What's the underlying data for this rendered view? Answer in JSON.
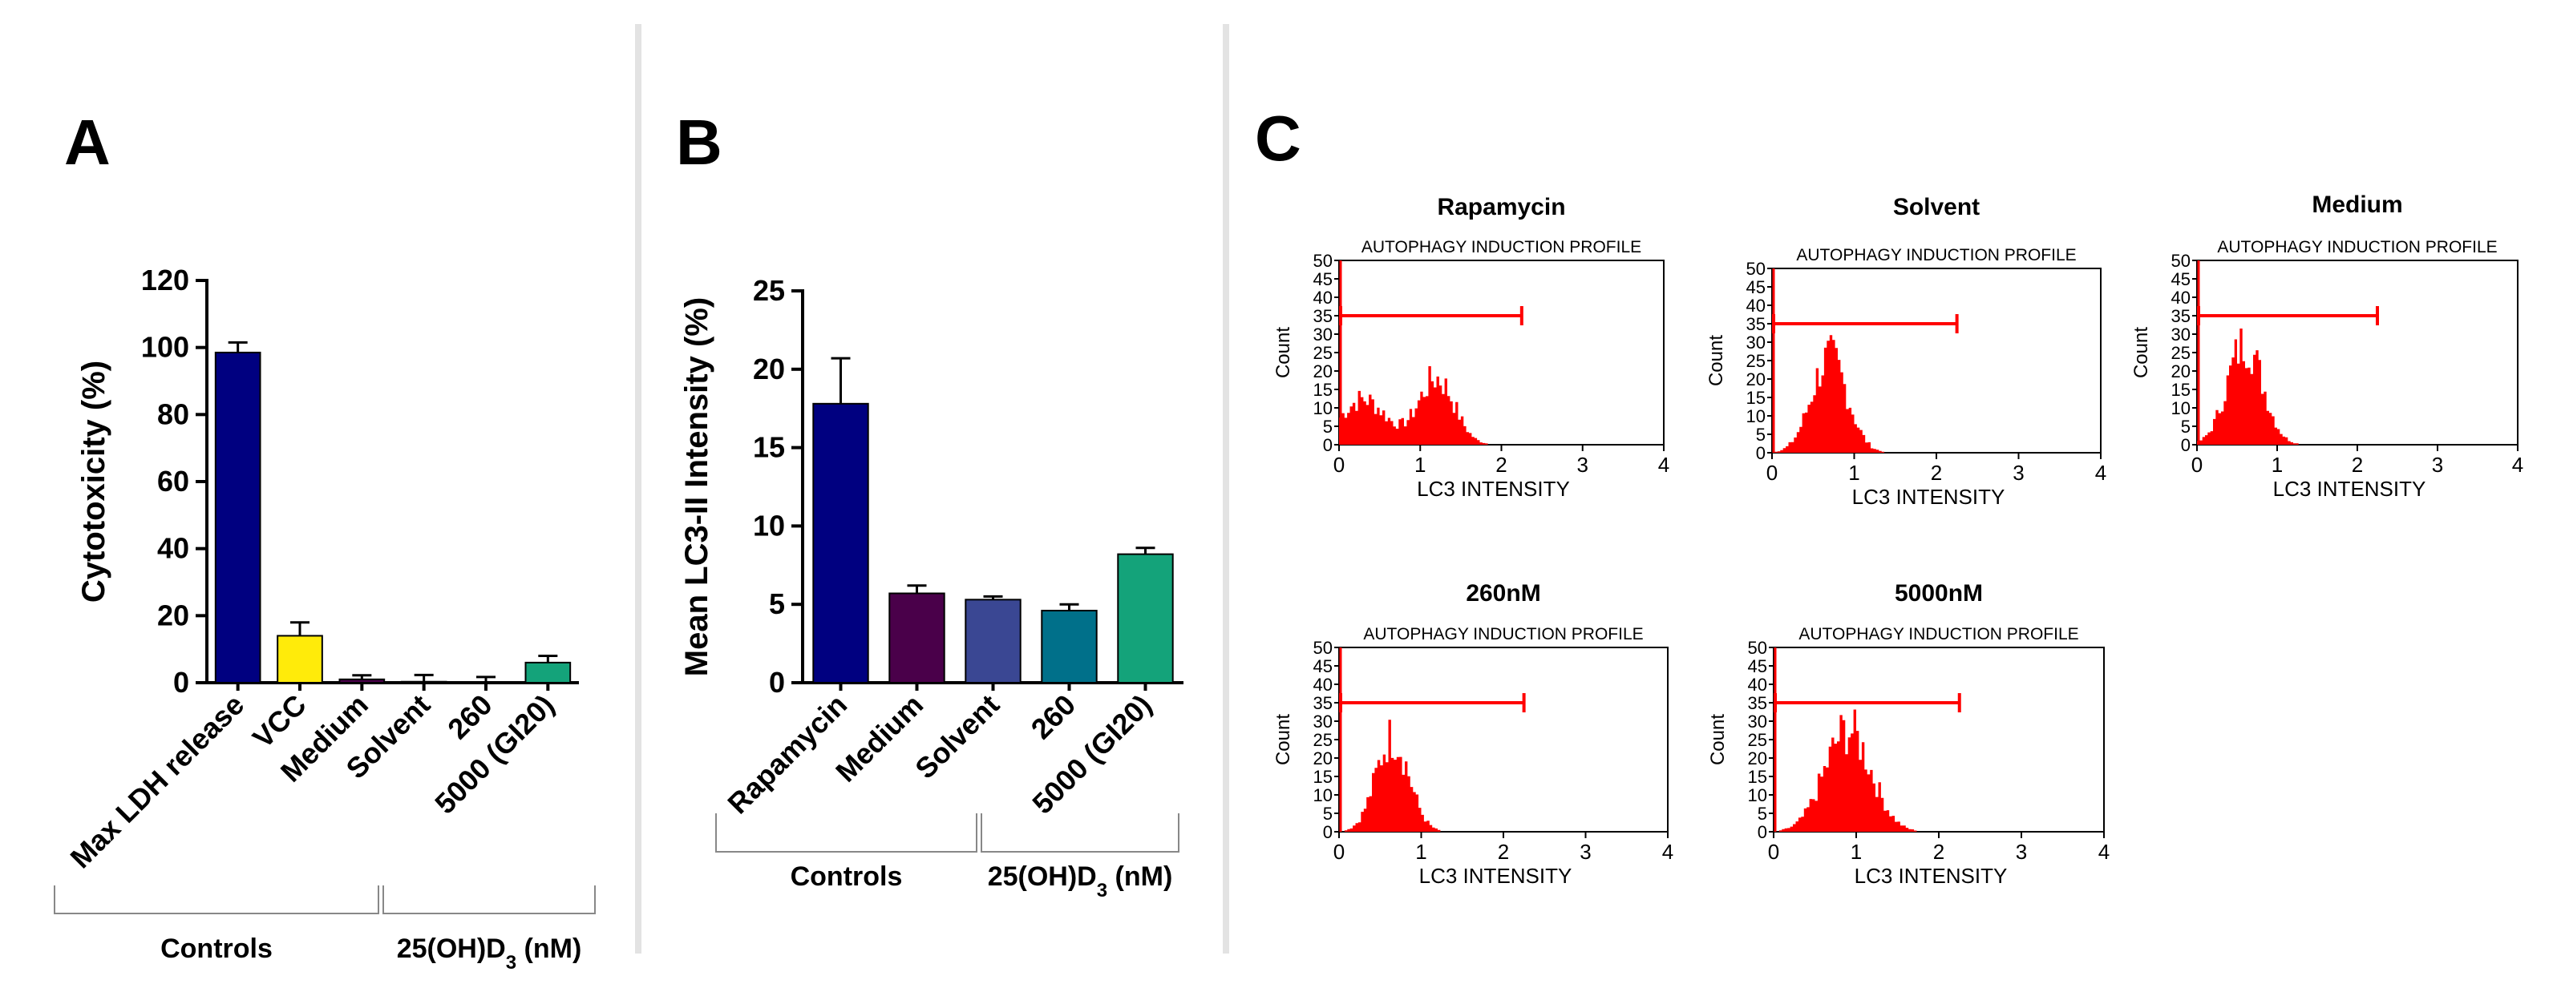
{
  "divider_color": "#e3e3e3",
  "histogram_color": "#ff0000",
  "chart_data": [
    {
      "panel": "A",
      "type": "bar",
      "ylabel": "Cytotoxicity (%)",
      "ylim": [
        0,
        120
      ],
      "yticks": [
        0,
        20,
        40,
        60,
        80,
        100,
        120
      ],
      "categories": [
        "Max LDH release",
        "VCC",
        "Medium",
        "Solvent",
        "260",
        "5000 (GI20)"
      ],
      "values": [
        98.5,
        14,
        1,
        0.3,
        0.2,
        6
      ],
      "errors": [
        3,
        4,
        1.2,
        2,
        1.5,
        2
      ],
      "colors": [
        "#000080",
        "#ffeb0a",
        "#4a004a",
        "#2e3a87",
        "#00708a",
        "#14a37a"
      ],
      "groups": [
        {
          "label": "Controls",
          "sub": "",
          "unit": "",
          "from": 0,
          "to": 3
        },
        {
          "label": "25(OH)D",
          "sub": "3",
          "unit": " (nM)",
          "from": 3,
          "to": 5
        }
      ]
    },
    {
      "panel": "B",
      "type": "bar",
      "ylabel": "Mean LC3-II Intensity (%)",
      "ylim": [
        0,
        25
      ],
      "yticks": [
        0,
        5,
        10,
        15,
        20,
        25
      ],
      "categories": [
        "Rapamycin",
        "Medium",
        "Solvent",
        "260",
        "5000 (GI20)"
      ],
      "values": [
        17.8,
        5.7,
        5.3,
        4.6,
        8.2
      ],
      "errors": [
        2.9,
        0.5,
        0.2,
        0.4,
        0.4
      ],
      "colors": [
        "#000080",
        "#4a004a",
        "#3a4793",
        "#00708a",
        "#14a37a"
      ],
      "groups": [
        {
          "label": "Controls",
          "sub": "",
          "unit": "",
          "from": 0,
          "to": 2
        },
        {
          "label": "25(OH)D",
          "sub": "3",
          "unit": " (nM)",
          "from": 2,
          "to": 4
        }
      ]
    },
    {
      "panel": "C",
      "type": "histogram",
      "profile_title": "AUTOPHAGY INDUCTION PROFILE",
      "xlabel": "LC3 INTENSITY",
      "ylabel": "Count",
      "xlim": [
        0,
        4
      ],
      "xticks": [
        0,
        1,
        2,
        3,
        4
      ],
      "ylim": [
        0,
        50
      ],
      "yticks": [
        0,
        5,
        10,
        15,
        20,
        25,
        30,
        35,
        40,
        45,
        50
      ],
      "gate": {
        "from": 0,
        "to": 2.25,
        "level": 35
      },
      "plots": [
        {
          "title": "Rapamycin",
          "peaks": [
            {
              "center": 0.3,
              "height": 13,
              "width": 0.28
            },
            {
              "center": 1.2,
              "height": 19,
              "width": 0.22
            }
          ]
        },
        {
          "title": "Solvent",
          "peaks": [
            {
              "center": 0.7,
              "height": 27,
              "width": 0.22
            }
          ]
        },
        {
          "title": "Medium",
          "peaks": [
            {
              "center": 0.6,
              "height": 29,
              "width": 0.22
            }
          ]
        },
        {
          "title": "260nM",
          "peaks": [
            {
              "center": 0.65,
              "height": 27,
              "width": 0.2
            }
          ]
        },
        {
          "title": "5000nM",
          "peaks": [
            {
              "center": 0.9,
              "height": 29,
              "width": 0.28
            }
          ]
        }
      ]
    }
  ]
}
